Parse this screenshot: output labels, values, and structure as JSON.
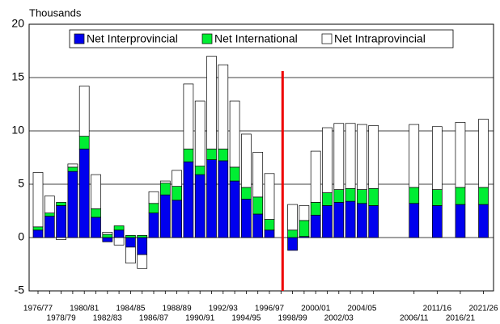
{
  "chart_data": {
    "type": "bar",
    "stacked": true,
    "y_label": "Thousands",
    "categories": [
      "1976/77",
      null,
      "1978/79",
      null,
      "1980/81",
      null,
      "1982/83",
      null,
      "1984/85",
      null,
      "1986/87",
      null,
      "1988/89",
      null,
      "1990/91",
      null,
      "1992/93",
      null,
      "1994/95",
      null,
      "1996/97",
      null,
      "1998/99",
      null,
      "2000/01",
      null,
      "2002/03",
      null,
      "2004/05",
      null,
      "2006/11",
      "2011/16",
      "2016/21",
      "2021/26"
    ],
    "series": [
      {
        "name": "Net Interprovincial",
        "color": "#0000ee",
        "values": [
          0.7,
          2.0,
          3.0,
          6.2,
          8.3,
          1.9,
          -0.4,
          0.7,
          -0.9,
          -1.6,
          2.3,
          4.0,
          3.5,
          7.1,
          5.9,
          7.3,
          7.2,
          5.3,
          3.6,
          2.2,
          0.7,
          null,
          -1.2,
          0.1,
          2.1,
          3.0,
          3.3,
          3.4,
          3.2,
          3.0,
          3.2,
          3.0,
          3.1,
          3.1
        ]
      },
      {
        "name": "Net International",
        "color": "#00ee33",
        "values": [
          0.3,
          0.3,
          0.3,
          0.4,
          1.2,
          0.8,
          0.3,
          0.4,
          0.2,
          0.2,
          0.9,
          1.1,
          1.3,
          1.2,
          0.8,
          1.0,
          1.1,
          1.3,
          1.1,
          1.6,
          1.0,
          null,
          0.7,
          1.5,
          1.2,
          1.2,
          1.2,
          1.2,
          1.3,
          1.6,
          1.5,
          1.5,
          1.6,
          1.6
        ]
      },
      {
        "name": "Net Intraprovincial",
        "color": "#ffffff",
        "values": [
          5.1,
          1.6,
          -0.2,
          0.3,
          4.7,
          3.2,
          0.2,
          -0.7,
          -1.5,
          -1.3,
          1.1,
          0.2,
          1.5,
          6.1,
          6.1,
          8.7,
          7.9,
          6.2,
          5.0,
          4.2,
          4.3,
          null,
          2.4,
          1.4,
          4.8,
          6.1,
          6.2,
          6.1,
          6.1,
          5.9,
          5.9,
          5.9,
          6.1,
          6.4
        ]
      }
    ],
    "ylim": [
      -5,
      20
    ],
    "yticks": [
      -5,
      0,
      5,
      10,
      15,
      20
    ],
    "grid": true,
    "divider_color": "#ee0000"
  }
}
